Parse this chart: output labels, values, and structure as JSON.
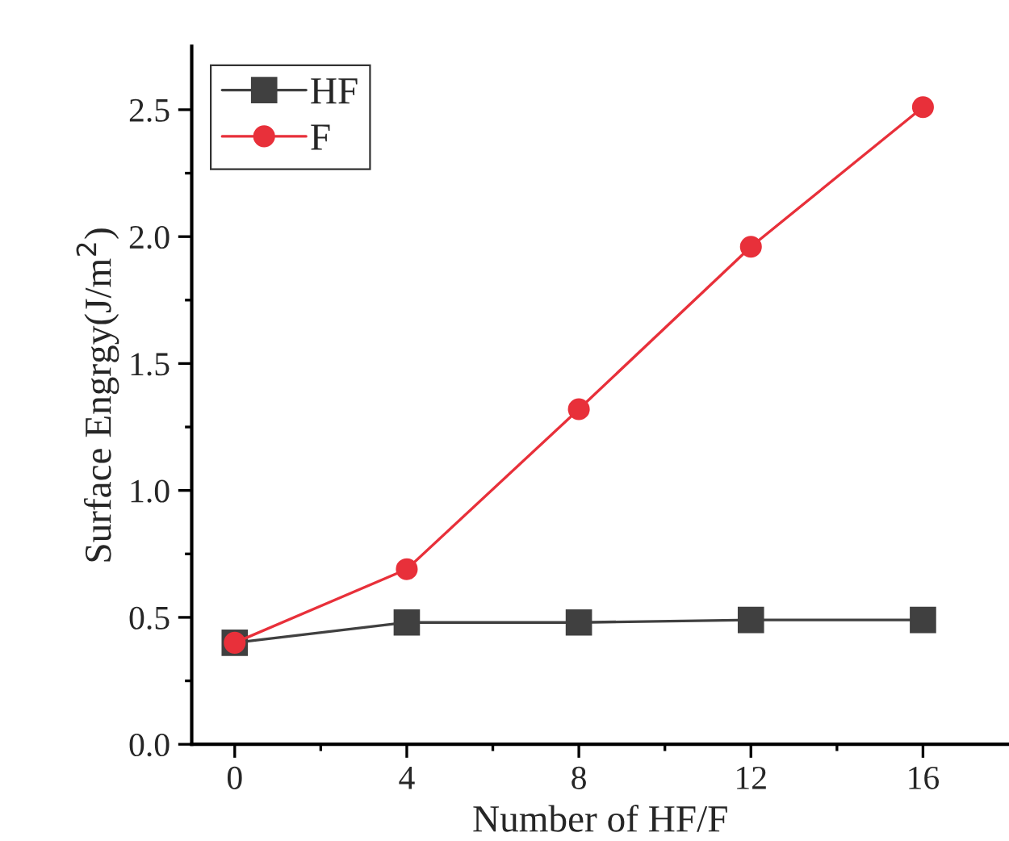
{
  "chart_data": {
    "type": "line",
    "xlabel": "Number of HF/F",
    "ylabel": "Surface Engrgy(J/m$^{2}$)",
    "x": [
      0,
      4,
      8,
      12,
      16
    ],
    "series": [
      {
        "name": "HF",
        "color": "#404040",
        "marker": "square",
        "values": [
          0.4,
          0.48,
          0.48,
          0.49,
          0.49
        ]
      },
      {
        "name": "F",
        "color": "#e8303a",
        "marker": "circle",
        "values": [
          0.4,
          0.69,
          1.32,
          1.96,
          2.51
        ]
      }
    ],
    "xlim": [
      -1,
      18
    ],
    "xticks": [
      0,
      4,
      8,
      12,
      16
    ],
    "ylim": [
      0,
      2.75
    ],
    "yticks": [
      {
        "value": 0,
        "label": "0.0"
      },
      0.5,
      {
        "value": 1,
        "label": "1.0"
      },
      1.5,
      {
        "value": 2,
        "label": "2.0"
      },
      2.5
    ],
    "grid": false,
    "legend": "top left",
    "line_style": "solid"
  }
}
